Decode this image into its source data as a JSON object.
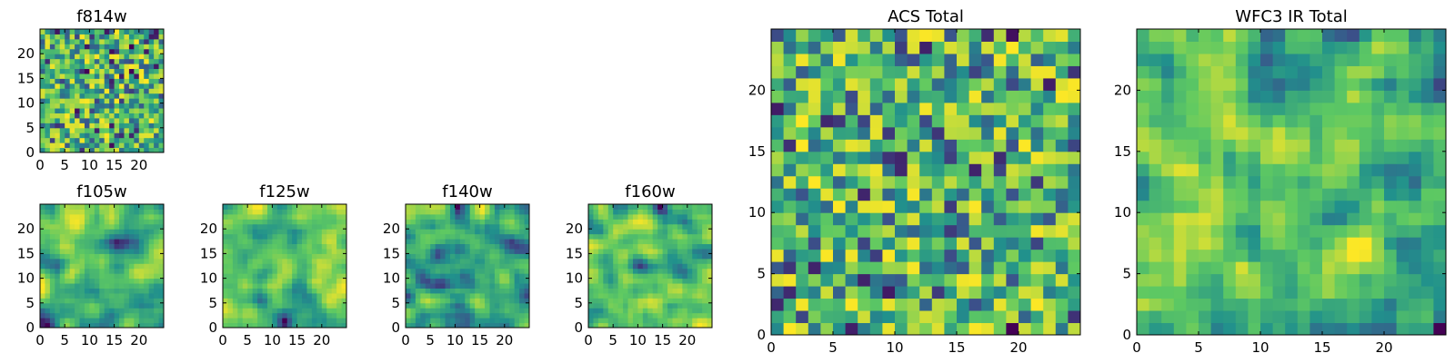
{
  "chart_data": [
    {
      "id": "f814w",
      "type": "heatmap",
      "title": "f814w",
      "xlim": [
        0,
        25
      ],
      "ylim": [
        0,
        25
      ],
      "xticks": [
        0,
        5,
        10,
        15,
        20
      ],
      "yticks": [
        0,
        5,
        10,
        15,
        20
      ],
      "seed": 3,
      "smooth": 0
    },
    {
      "id": "f105w",
      "type": "heatmap",
      "title": "f105w",
      "xlim": [
        0,
        25
      ],
      "ylim": [
        0,
        25
      ],
      "xticks": [
        0,
        5,
        10,
        15,
        20
      ],
      "yticks": [
        0,
        5,
        10,
        15,
        20
      ],
      "seed": 11,
      "smooth": 2
    },
    {
      "id": "f125w",
      "type": "heatmap",
      "title": "f125w",
      "xlim": [
        0,
        25
      ],
      "ylim": [
        0,
        25
      ],
      "xticks": [
        0,
        5,
        10,
        15,
        20
      ],
      "yticks": [
        0,
        5,
        10,
        15,
        20
      ],
      "seed": 17,
      "smooth": 2
    },
    {
      "id": "f140w",
      "type": "heatmap",
      "title": "f140w",
      "xlim": [
        0,
        25
      ],
      "ylim": [
        0,
        25
      ],
      "xticks": [
        0,
        5,
        10,
        15,
        20
      ],
      "yticks": [
        0,
        5,
        10,
        15,
        20
      ],
      "seed": 23,
      "smooth": 2
    },
    {
      "id": "f160w",
      "type": "heatmap",
      "title": "f160w",
      "xlim": [
        0,
        25
      ],
      "ylim": [
        0,
        25
      ],
      "xticks": [
        0,
        5,
        10,
        15,
        20
      ],
      "yticks": [
        0,
        5,
        10,
        15,
        20
      ],
      "seed": 29,
      "smooth": 2
    },
    {
      "id": "acs",
      "type": "heatmap",
      "title": "ACS Total",
      "xlim": [
        0,
        25
      ],
      "ylim": [
        0,
        25
      ],
      "xticks": [
        0,
        5,
        10,
        15,
        20
      ],
      "yticks": [
        0,
        5,
        10,
        15,
        20
      ],
      "seed": 41,
      "smooth": 0
    },
    {
      "id": "wfc3",
      "type": "heatmap",
      "title": "WFC3 IR Total",
      "xlim": [
        0,
        25
      ],
      "ylim": [
        0,
        25
      ],
      "xticks": [
        0,
        5,
        10,
        15,
        20
      ],
      "yticks": [
        0,
        5,
        10,
        15,
        20
      ],
      "seed": 53,
      "smooth": 1
    }
  ],
  "colormap": [
    "#440154",
    "#3b528b",
    "#21918c",
    "#5ec962",
    "#fde725"
  ]
}
